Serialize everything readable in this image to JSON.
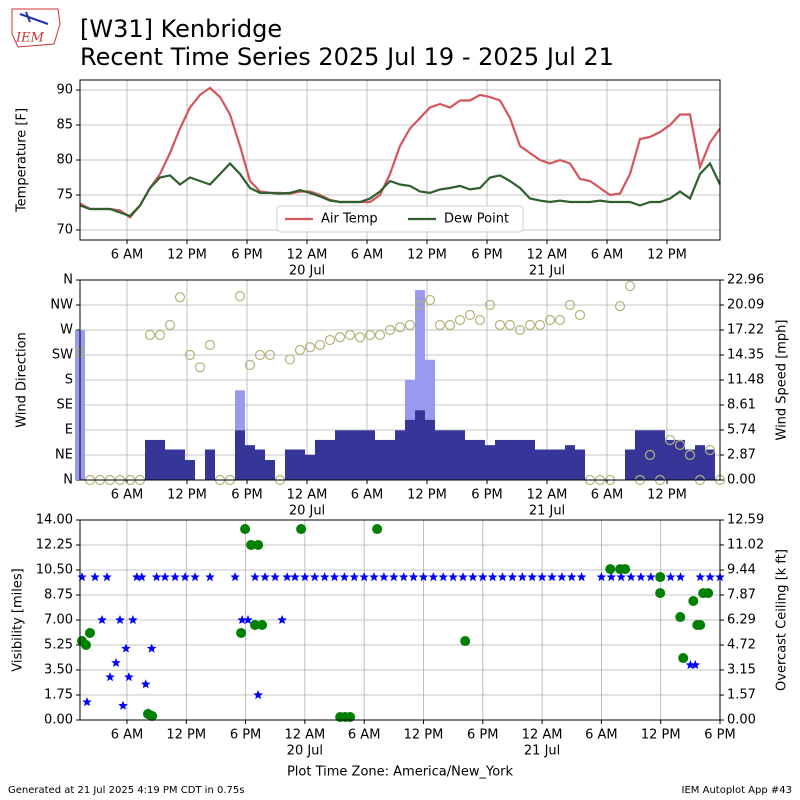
{
  "header": {
    "logo": "IEM",
    "title": "[W31] Kenbridge",
    "subtitle": "Recent Time Series 2025 Jul 19 - 2025 Jul 21"
  },
  "footer": {
    "left": "Generated at 21 Jul 2025 4:19 PM CDT in 0.75s",
    "right": "IEM Autoplot App #43"
  },
  "chart_data": [
    {
      "type": "line",
      "ylabel": "Temperature [F]",
      "grid": true,
      "legend": "lower center",
      "legend_columns": 2,
      "xlim": [
        1.3,
        65.3
      ],
      "ylim": [
        68.57,
        91.43
      ],
      "yticks": [
        70,
        75,
        80,
        85,
        90
      ],
      "xticks": [
        {
          "value": 6,
          "label": "6 AM"
        },
        {
          "value": 12,
          "label": "12 PM"
        },
        {
          "value": 18,
          "label": "6 PM"
        },
        {
          "value": 24,
          "label": "12 AM",
          "date": "20 Jul"
        },
        {
          "value": 30,
          "label": "6 AM"
        },
        {
          "value": 36,
          "label": "12 PM"
        },
        {
          "value": 42,
          "label": "6 PM"
        },
        {
          "value": 48,
          "label": "12 AM",
          "date": "21 Jul"
        },
        {
          "value": 54,
          "label": "6 AM"
        },
        {
          "value": 60,
          "label": "12 PM"
        }
      ],
      "x": [
        1.3,
        2.3,
        3.3,
        4.3,
        5.3,
        6.3,
        7.3,
        8.3,
        9.3,
        10.3,
        11.3,
        12.3,
        13.3,
        14.3,
        15.3,
        16.3,
        17.3,
        18.3,
        19.3,
        20.3,
        21.3,
        22.3,
        23.3,
        24.3,
        25.3,
        26.3,
        27.3,
        28.3,
        29.3,
        30.3,
        31.3,
        32.3,
        33.3,
        34.3,
        35.3,
        36.3,
        37.3,
        38.3,
        39.3,
        40.3,
        41.3,
        42.3,
        43.3,
        44.3,
        45.3,
        46.3,
        47.3,
        48.3,
        49.3,
        50.3,
        51.3,
        52.3,
        53.3,
        54.3,
        55.3,
        56.3,
        57.3,
        58.3,
        59.3,
        60.3,
        61.3,
        62.3,
        63.3,
        64.3,
        65.3
      ],
      "series": [
        {
          "name": "Air Temp",
          "color": "#d4565c",
          "values": [
            73.8,
            73,
            73,
            73,
            72.8,
            71.8,
            73.5,
            76,
            78,
            81,
            84.5,
            87.5,
            89.3,
            90.3,
            89,
            86.5,
            82,
            77,
            75.5,
            75.3,
            75.3,
            75.2,
            75.5,
            75.5,
            75,
            74.3,
            74,
            74,
            74,
            74,
            75,
            78,
            82,
            84.5,
            86,
            87.5,
            88,
            87.5,
            88.5,
            88.5,
            89.3,
            89,
            88.5,
            86,
            82,
            81,
            80,
            79.5,
            80,
            79.5,
            77.3,
            77,
            76,
            75,
            75.2,
            78,
            83,
            83.3,
            84,
            85,
            86.5,
            86.5,
            79,
            82.5,
            84.5
          ]
        },
        {
          "name": "Dew Point",
          "color": "#2f5f2f",
          "values": [
            73.5,
            73,
            73,
            73,
            72.5,
            72,
            73.5,
            76,
            77.5,
            77.8,
            76.5,
            77.5,
            77,
            76.5,
            78,
            79.5,
            78,
            76,
            75.3,
            75.3,
            75.2,
            75.3,
            75.7,
            75.3,
            74.8,
            74.2,
            74,
            74,
            74,
            74.5,
            75.5,
            77,
            76.5,
            76.3,
            75.5,
            75.3,
            75.8,
            76,
            76.3,
            75.8,
            76,
            77.5,
            77.8,
            77,
            76,
            74.5,
            74.2,
            74,
            74.2,
            74,
            74,
            74,
            74.2,
            74,
            74,
            74,
            73.5,
            74,
            74,
            74.5,
            75.5,
            74.5,
            78,
            79.5,
            76.5
          ]
        }
      ]
    },
    {
      "type": "combo",
      "ylabel": "Wind Direction",
      "y2label": "Wind Speed [mph]",
      "grid": true,
      "xlim": [
        1.3,
        65.3
      ],
      "ylim": [
        0,
        360
      ],
      "yticks": [
        {
          "value": 0,
          "label": "N"
        },
        {
          "value": 45,
          "label": "NE"
        },
        {
          "value": 90,
          "label": "E"
        },
        {
          "value": 135,
          "label": "SE"
        },
        {
          "value": 180,
          "label": "S"
        },
        {
          "value": 225,
          "label": "SW"
        },
        {
          "value": 270,
          "label": "W"
        },
        {
          "value": 315,
          "label": "NW"
        },
        {
          "value": 360,
          "label": "N"
        }
      ],
      "y2lim": [
        0,
        22.96
      ],
      "y2ticks": [
        {
          "value": 0,
          "label": "0.00"
        },
        2.87,
        5.74,
        8.61,
        11.48,
        14.35,
        17.22,
        20.09,
        22.96
      ],
      "xticks": [
        {
          "value": 6,
          "label": "6 AM"
        },
        {
          "value": 12,
          "label": "12 PM"
        },
        {
          "value": 18,
          "label": "6 PM"
        },
        {
          "value": 24,
          "label": "12 AM",
          "date": "20 Jul"
        },
        {
          "value": 30,
          "label": "6 AM"
        },
        {
          "value": 36,
          "label": "12 PM"
        },
        {
          "value": 42,
          "label": "6 PM"
        },
        {
          "value": 48,
          "label": "12 AM",
          "date": "21 Jul"
        },
        {
          "value": 54,
          "label": "6 AM"
        },
        {
          "value": 60,
          "label": "12 PM"
        }
      ],
      "x": [
        1.3,
        2.3,
        3.3,
        4.3,
        5.3,
        6.3,
        7.3,
        8.3,
        9.3,
        10.3,
        11.3,
        12.3,
        13.3,
        14.3,
        15.3,
        16.3,
        17.3,
        18.3,
        19.3,
        20.3,
        21.3,
        22.3,
        23.3,
        24.3,
        25.3,
        26.3,
        27.3,
        28.3,
        29.3,
        30.3,
        31.3,
        32.3,
        33.3,
        34.3,
        35.3,
        36.3,
        37.3,
        38.3,
        39.3,
        40.3,
        41.3,
        42.3,
        43.3,
        44.3,
        45.3,
        46.3,
        47.3,
        48.3,
        49.3,
        50.3,
        51.3,
        52.3,
        53.3,
        54.3,
        55.3,
        56.3,
        57.3,
        58.3,
        59.3,
        60.3,
        61.3,
        62.3,
        63.3,
        64.3,
        65.3
      ],
      "series": [
        {
          "type": "bar",
          "axis": "y2",
          "color": "#9999ee",
          "x": [
            1.3,
            17.3,
            34.3,
            35.3,
            36.3
          ],
          "values": [
            17.2,
            10.3,
            11.5,
            21.8,
            13.8
          ]
        },
        {
          "type": "bar",
          "axis": "y2",
          "color": "#363699",
          "values": [
            0,
            0,
            0,
            0,
            0,
            0,
            0,
            4.6,
            4.6,
            3.5,
            3.5,
            2.3,
            0,
            3.5,
            0,
            0,
            5.7,
            4,
            3.5,
            2.3,
            0,
            3.5,
            3.5,
            2.9,
            4.6,
            4.6,
            5.7,
            5.7,
            5.7,
            5.7,
            4.6,
            4.6,
            5.7,
            6.9,
            8,
            6.9,
            5.7,
            5.7,
            5.7,
            4.6,
            4.6,
            4,
            4.6,
            4.6,
            4.6,
            4.6,
            3.5,
            3.5,
            3.5,
            4,
            3.5,
            0,
            0,
            0,
            0,
            3.5,
            5.7,
            5.7,
            5.7,
            4.6,
            4.6,
            3.5,
            4,
            3.5,
            0
          ]
        },
        {
          "type": "scatter",
          "marker": "circle",
          "color": "#b3b37a",
          "values": [
            230,
            0,
            0,
            0,
            0,
            0,
            0,
            261,
            261,
            279,
            329,
            225,
            203,
            243,
            0,
            0,
            331,
            207,
            225,
            225,
            0,
            217,
            234,
            239,
            243,
            252,
            257,
            261,
            257,
            261,
            261,
            270,
            275,
            279,
            315,
            324,
            279,
            279,
            288,
            297,
            288,
            315,
            279,
            279,
            270,
            279,
            279,
            288,
            288,
            315,
            297,
            0,
            0,
            0,
            313,
            349,
            0,
            45,
            0,
            72,
            63,
            45,
            0,
            54,
            0
          ]
        }
      ]
    },
    {
      "type": "scatter",
      "ylabel": "Visibility [miles]",
      "y2label": "Overcast Ceiling [k ft]",
      "y2label_color": "#008000",
      "grid": true,
      "xlabel": "Plot Time Zone: America/New_York",
      "xlim": [
        1.25,
        66
      ],
      "ylim": [
        0,
        14
      ],
      "yticks": [
        {
          "value": 0,
          "label": "0.00"
        },
        1.75,
        {
          "value": 3.5,
          "label": "3.50"
        },
        5.25,
        {
          "value": 7,
          "label": "7.00"
        },
        8.75,
        {
          "value": 10.5,
          "label": "10.50"
        },
        12.25,
        {
          "value": 14,
          "label": "14.00"
        }
      ],
      "y2lim": [
        0,
        12.59
      ],
      "y2ticks": [
        {
          "value": 0,
          "label": "0.00"
        },
        1.57,
        3.15,
        4.72,
        6.29,
        7.87,
        9.44,
        11.02,
        12.59
      ],
      "xticks": [
        {
          "value": 6,
          "label": "6 AM"
        },
        {
          "value": 12,
          "label": "12 PM"
        },
        {
          "value": 18,
          "label": "6 PM"
        },
        {
          "value": 24,
          "label": "12 AM",
          "date": "20 Jul"
        },
        {
          "value": 30,
          "label": "6 AM"
        },
        {
          "value": 36,
          "label": "12 PM"
        },
        {
          "value": 42,
          "label": "6 PM"
        },
        {
          "value": 48,
          "label": "12 AM",
          "date": "21 Jul"
        },
        {
          "value": 54,
          "label": "6 AM"
        },
        {
          "value": 60,
          "label": "12 PM"
        },
        {
          "value": 66,
          "label": "6 PM"
        }
      ],
      "series": [
        {
          "marker": "star",
          "color": "#0000ff",
          "x": [
            1.45,
            1.96,
            2.77,
            3.48,
            3.98,
            4.29,
            4.89,
            5.3,
            5.6,
            5.9,
            6.2,
            6.6,
            7.0,
            7.5,
            7.9,
            8.2,
            8.5,
            9.0,
            9.85,
            10.87,
            11.88,
            12.89,
            14.4,
            16.94,
            17.65,
            18.25,
            18.96,
            19.27,
            19.97,
            20.99,
            21.7,
            22.2,
            23,
            24,
            25,
            26,
            27,
            28,
            29,
            30,
            31,
            32,
            33,
            34,
            35,
            36,
            37,
            38,
            39,
            40,
            41,
            42,
            43,
            44,
            45,
            46,
            47,
            48,
            49,
            50,
            51,
            52,
            54,
            55,
            56,
            57,
            58,
            59,
            60,
            61,
            62,
            63,
            63.5,
            64,
            65,
            66
          ],
          "values": [
            10,
            1.25,
            10,
            7,
            10,
            3,
            4,
            7,
            1,
            5,
            3,
            7,
            10,
            10,
            2.5,
            0.5,
            5,
            10,
            10,
            10,
            10,
            10,
            10,
            10,
            7,
            7,
            10,
            1.75,
            10,
            10,
            7,
            10,
            10,
            10,
            10,
            10,
            10,
            10,
            10,
            10,
            10,
            10,
            10,
            10,
            10,
            10,
            10,
            10,
            10,
            10,
            10,
            10,
            10,
            10,
            10,
            10,
            10,
            10,
            10,
            10,
            10,
            10,
            10,
            10,
            10,
            10,
            10,
            10,
            10,
            10,
            10,
            3.85,
            3.85,
            10,
            10,
            10
          ]
        },
        {
          "marker": "circle",
          "axis": "y2",
          "color": "#008000",
          "x": [
            1.45,
            1.86,
            2.26,
            8.13,
            8.54,
            17.55,
            17.95,
            18.56,
            19.27,
            18.96,
            19.67,
            23.62,
            27.57,
            28.07,
            28.58,
            31.31,
            40.22,
            54.9,
            55.9,
            56.4,
            59.95,
            59.95,
            61.98,
            62.28,
            63.3,
            63.7,
            64.0,
            64.3,
            64.8
          ],
          "values": [
            4.97,
            4.72,
            5.48,
            0.38,
            0.25,
            5.48,
            12.02,
            11.02,
            11.02,
            5.98,
            5.98,
            12.02,
            0.19,
            0.19,
            0.19,
            12.02,
            4.97,
            9.5,
            9.5,
            9.5,
            7.99,
            9.0,
            6.48,
            3.9,
            7.49,
            5.98,
            5.98,
            7.99,
            7.99
          ]
        }
      ]
    }
  ]
}
